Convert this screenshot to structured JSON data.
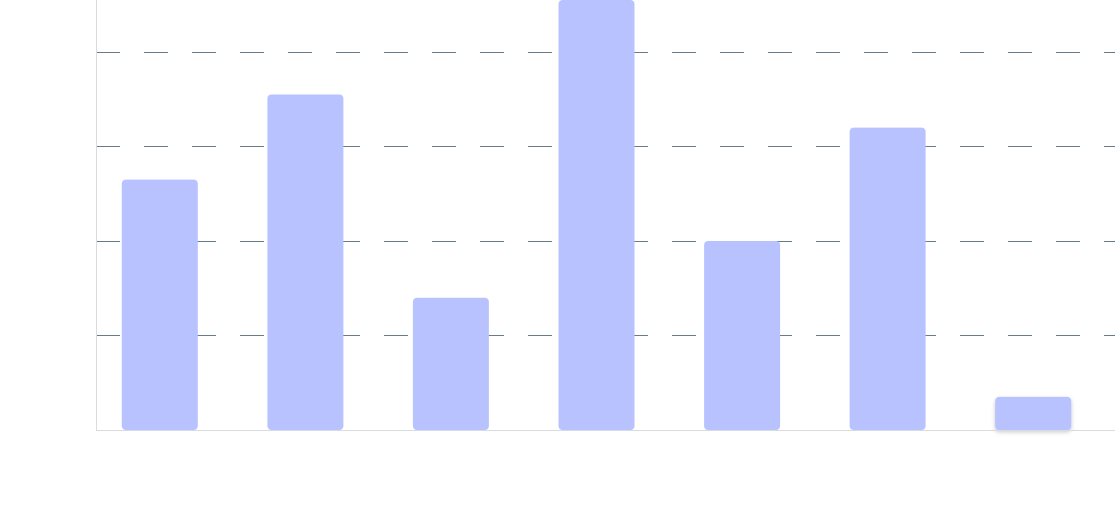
{
  "chart_data": {
    "type": "bar",
    "categories": [
      "",
      "",
      "",
      "",
      "",
      "",
      ""
    ],
    "values": [
      53,
      71,
      28,
      91,
      40,
      64,
      7
    ],
    "ylim": [
      0,
      91
    ],
    "grid": true,
    "grid_values": [
      20,
      40,
      60,
      80
    ],
    "xlabel": "",
    "ylabel": "",
    "title": "",
    "colors": {
      "bar": "#b8c2ff",
      "grid": "#5f7484",
      "axis": "#d8dbe0"
    },
    "hover_index": 6
  }
}
